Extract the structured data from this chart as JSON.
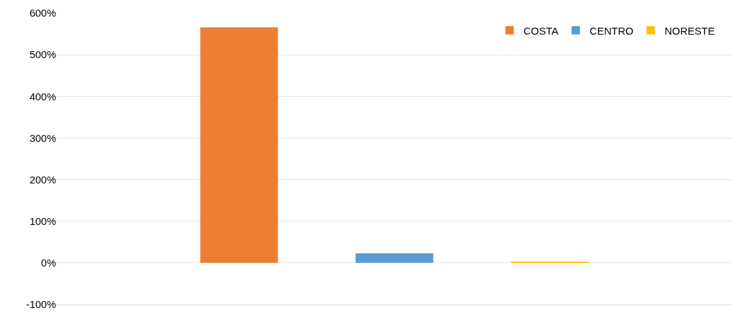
{
  "chart_data": {
    "type": "bar",
    "categories": [
      null
    ],
    "series": [
      {
        "name": "COSTA",
        "color": "#ed7d31",
        "values": [
          566
        ]
      },
      {
        "name": "CENTRO",
        "color": "#5b9bd5",
        "values": [
          23
        ]
      },
      {
        "name": "NORESTE",
        "color": "#ffc000",
        "values": [
          2
        ]
      }
    ],
    "ylim": [
      -100,
      600
    ],
    "yticks": [
      {
        "value": -100,
        "label": "-100%"
      },
      {
        "value": 0,
        "label": "0%"
      },
      {
        "value": 100,
        "label": "100%"
      },
      {
        "value": 200,
        "label": "200%"
      },
      {
        "value": 300,
        "label": "300%"
      },
      {
        "value": 400,
        "label": "400%"
      },
      {
        "value": 500,
        "label": "500%"
      },
      {
        "value": 600,
        "label": "600%"
      }
    ],
    "grid": "y",
    "legend": "top right"
  }
}
